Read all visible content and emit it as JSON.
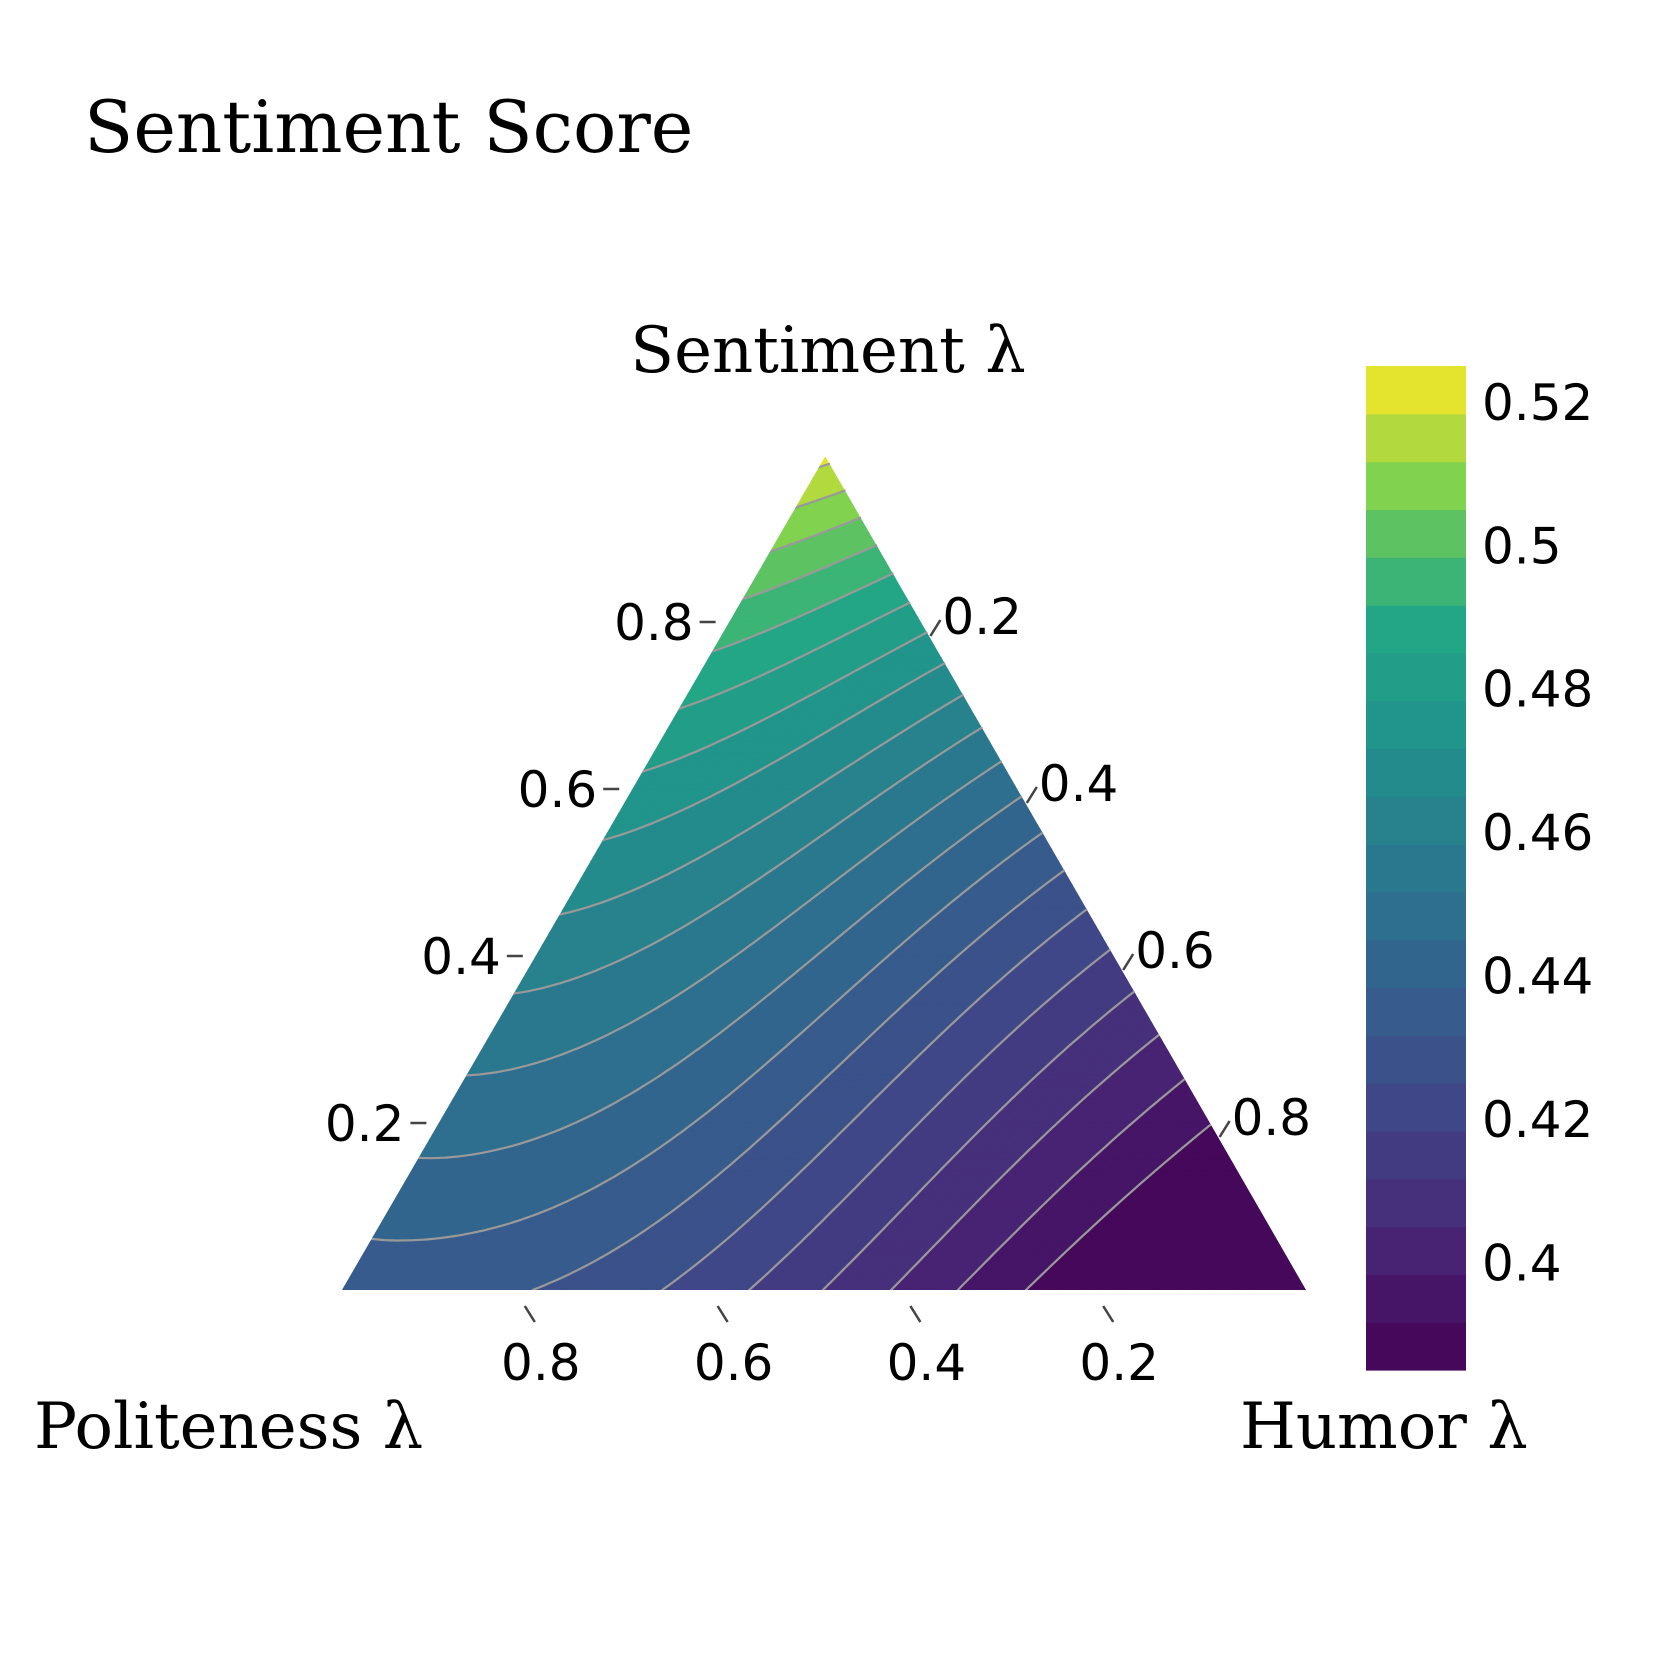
{
  "chart_data": {
    "type": "heatmap",
    "subtype": "ternary-contour",
    "title": "Sentiment Score",
    "axes": {
      "top": {
        "label": "Sentiment λ",
        "ticks": [
          "0.2",
          "0.4",
          "0.6",
          "0.8"
        ]
      },
      "left": {
        "label": "Politeness λ",
        "ticks": [
          "0.2",
          "0.4",
          "0.6",
          "0.8"
        ]
      },
      "right": {
        "label": "Humor λ",
        "ticks": [
          "0.2",
          "0.4",
          "0.6",
          "0.8"
        ]
      }
    },
    "colorbar": {
      "colormap": "viridis",
      "range": [
        0.385,
        0.525
      ],
      "levels": 21,
      "ticks": [
        0.4,
        0.42,
        0.44,
        0.46,
        0.48,
        0.5,
        0.52
      ],
      "tick_labels": [
        "0.4",
        "0.42",
        "0.44",
        "0.46",
        "0.48",
        "0.5",
        "0.52"
      ]
    },
    "vertex_values": {
      "sentiment_1": 0.52,
      "politeness_1": 0.434,
      "humor_1": 0.392
    },
    "contour_color": "#999999"
  }
}
